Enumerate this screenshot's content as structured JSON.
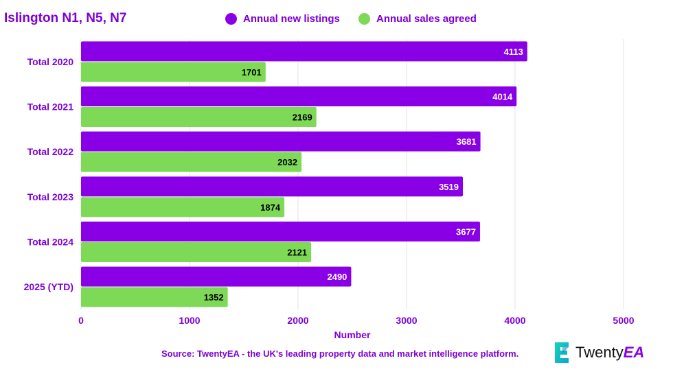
{
  "header": {
    "title": "Islington N1, N5, N7"
  },
  "legend": [
    {
      "label": "Annual new listings",
      "color": "#8a00e6"
    },
    {
      "label": "Annual sales agreed",
      "color": "#7ed957"
    }
  ],
  "footer": {
    "source": "Source: TwentyEA - the UK's leading property data and market intelligence platform.",
    "logo_prefix": "Twenty",
    "logo_suffix": "EA",
    "logo_icon": "twentyea-logo-icon"
  },
  "chart_data": {
    "type": "bar",
    "orientation": "horizontal",
    "title": "Islington N1, N5, N7",
    "xlabel": "Number",
    "ylabel": "",
    "categories": [
      "Total 2020",
      "Total 2021",
      "Total 2022",
      "Total 2023",
      "Total 2024",
      "2025 (YTD)"
    ],
    "series": [
      {
        "name": "Annual new listings",
        "color": "#8a00e6",
        "label_color": "#ffffff",
        "values": [
          4113,
          4014,
          3681,
          3519,
          3677,
          2490
        ]
      },
      {
        "name": "Annual sales agreed",
        "color": "#7ed957",
        "label_color": "#000000",
        "values": [
          1701,
          2169,
          2032,
          1874,
          2121,
          1352
        ]
      }
    ],
    "xlim": [
      0,
      5000
    ],
    "xticks": [
      0,
      1000,
      2000,
      3000,
      4000,
      5000
    ],
    "grid": true,
    "legend_position": "top"
  }
}
